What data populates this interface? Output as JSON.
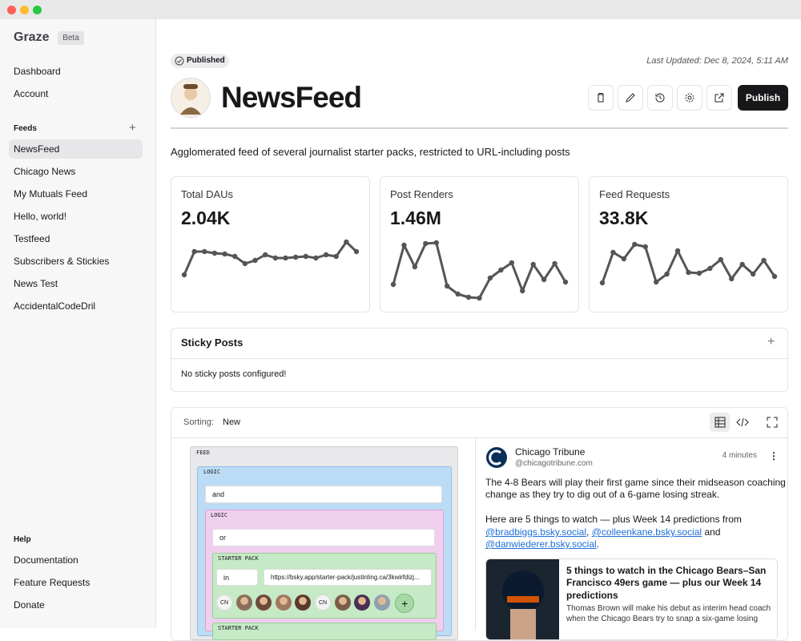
{
  "sidebar": {
    "brand": "Graze",
    "badge": "Beta",
    "nav": [
      "Dashboard",
      "Account"
    ],
    "feeds_heading": "Feeds",
    "feeds": [
      "NewsFeed",
      "Chicago News",
      "My Mutuals Feed",
      "Hello, world!",
      "Testfeed",
      "Subscribers & Stickies",
      "News Test",
      "AccidentalCodeDril"
    ],
    "help_heading": "Help",
    "help": [
      "Documentation",
      "Feature Requests",
      "Donate"
    ]
  },
  "header": {
    "status": "Published",
    "last_updated": "Last Updated: Dec 8, 2024, 5:11 AM",
    "title": "NewsFeed",
    "publish_button": "Publish",
    "description": "Agglomerated feed of several journalist starter packs, restricted to URL-including posts"
  },
  "stats": [
    {
      "label": "Total DAUs",
      "value": "2.04K",
      "trend": [
        29,
        58,
        58,
        56,
        55,
        52,
        43,
        47,
        54,
        50,
        50,
        51,
        52,
        50,
        54,
        52,
        70,
        58
      ]
    },
    {
      "label": "Post Renders",
      "value": "1.46M",
      "trend": [
        17,
        66,
        39,
        68,
        69,
        15,
        5,
        1,
        0,
        25,
        35,
        44,
        9,
        42,
        23,
        43,
        20
      ]
    },
    {
      "label": "Feed Requests",
      "value": "33.8K",
      "trend": [
        19,
        57,
        49,
        67,
        64,
        20,
        30,
        59,
        32,
        31,
        37,
        48,
        24,
        42,
        30,
        47,
        27
      ]
    }
  ],
  "sticky": {
    "title": "Sticky Posts",
    "empty": "No sticky posts configured!"
  },
  "sorting": {
    "label": "Sorting:",
    "value": "New"
  },
  "feed_builder": {
    "root": "FEED",
    "logic_labels": [
      "LOGIC",
      "LOGIC"
    ],
    "and": "and",
    "or": "or",
    "starter_packs": [
      "STARTER PACK",
      "STARTER PACK"
    ],
    "operator": "in",
    "url": "https://bsky.app/starter-pack/justinling.ca/3kwirfdizj...",
    "avatars": [
      "CN",
      "CN"
    ]
  },
  "post": {
    "author": "Chicago Tribune",
    "handle": "@chicagotribune.com",
    "time": "4 minutes",
    "line1": "The 4-8 Bears will play their first game since their midseason coaching",
    "line2": "change as they try to dig out of a 6-game losing streak.",
    "line3": "Here are 5 things to watch — plus Week 14 predictions from",
    "mention1": "@bradbiggs.bsky.social",
    "sep1": ",",
    "mention2": "@colleenkane.bsky.social",
    "sep2": "and",
    "mention3": "@danwiederer.bsky.social",
    "sep3": ".",
    "card_title": [
      "5 things to watch in the Chicago Bears–San",
      "Francisco 49ers game — plus our Week 14",
      "predictions"
    ],
    "card_desc": [
      "Thomas Brown will make his debut as interim head coach",
      "when the Chicago Bears try to snap a six-game losing"
    ]
  }
}
